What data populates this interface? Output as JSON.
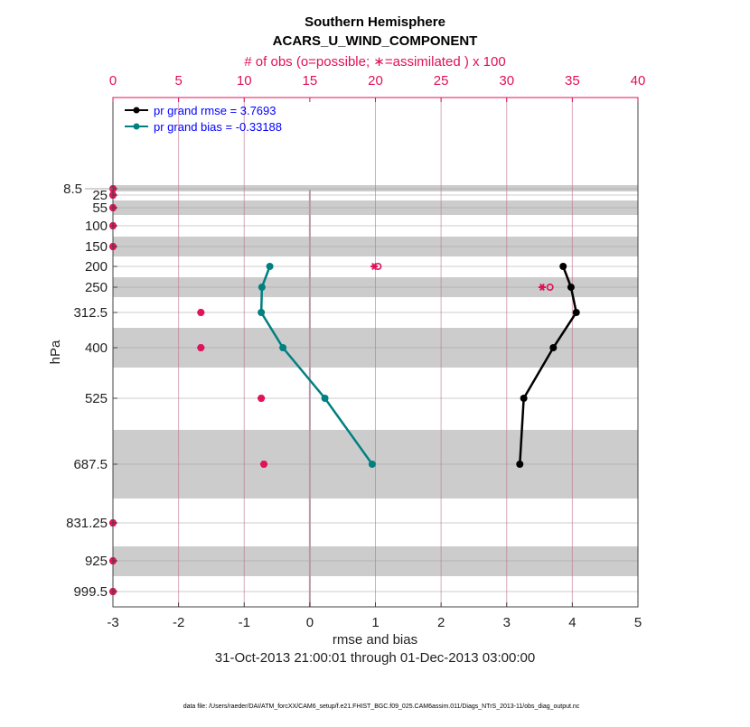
{
  "chart_data": {
    "type": "line",
    "title": "Southern Hemisphere",
    "subtitle": "ACARS_U_WIND_COMPONENT",
    "top_axis_label": "# of obs (o=possible; ∗=assimilated ) x 100",
    "xlabel": "rmse and bias",
    "ylabel": "hPa",
    "date_range": "31-Oct-2013 21:00:01 through 01-Dec-2013 03:00:00",
    "footer": "data file: /Users/raeder/DAI/ATM_forcXX/CAM6_setup/f.e21.FHIST_BGC.f09_025.CAM6assim.011/Diags_NTrS_2013-11/obs_diag_output.nc",
    "xlim": [
      -3,
      5
    ],
    "x_ticks": [
      "-3",
      "-2",
      "-1",
      "0",
      "1",
      "2",
      "3",
      "4",
      "5"
    ],
    "top_xlim": [
      0,
      40
    ],
    "top_ticks": [
      "0",
      "5",
      "10",
      "15",
      "20",
      "25",
      "30",
      "35",
      "40"
    ],
    "levels": [
      8.5,
      25,
      55,
      100,
      150,
      200,
      250,
      312.5,
      400,
      525,
      687.5,
      831.25,
      925,
      999.5
    ],
    "level_labels": [
      "8.5",
      "25",
      "55",
      "100",
      "150",
      "200",
      "250",
      "312.5",
      "400",
      "525",
      "687.5",
      "831.25",
      "925",
      "999.5"
    ],
    "legend_placement": "top-left",
    "colors": {
      "rmse": "#000000",
      "bias": "#008080",
      "obs": "#e0105a",
      "band": "#cccccc",
      "legend_text": "#0000ff"
    },
    "series": [
      {
        "name": "pr grand rmse = 3.7693",
        "levels": [
          200,
          250,
          312.5,
          400,
          525,
          687.5
        ],
        "values": [
          3.86,
          3.98,
          4.06,
          3.71,
          3.26,
          3.2
        ]
      },
      {
        "name": "pr grand bias = -0.33188",
        "levels": [
          200,
          250,
          312.5,
          400,
          525,
          687.5
        ],
        "values": [
          -0.61,
          -0.73,
          -0.74,
          -0.41,
          0.23,
          0.95
        ]
      }
    ],
    "obs_possible": [
      0,
      0,
      0,
      0,
      0,
      20.2,
      33.3,
      6.7,
      6.7,
      11.3,
      11.5,
      0,
      0,
      0
    ],
    "obs_assimilated": [
      0,
      0,
      0,
      0,
      0,
      19.9,
      32.7,
      6.7,
      6.7,
      11.3,
      11.5,
      0,
      0,
      0
    ]
  }
}
